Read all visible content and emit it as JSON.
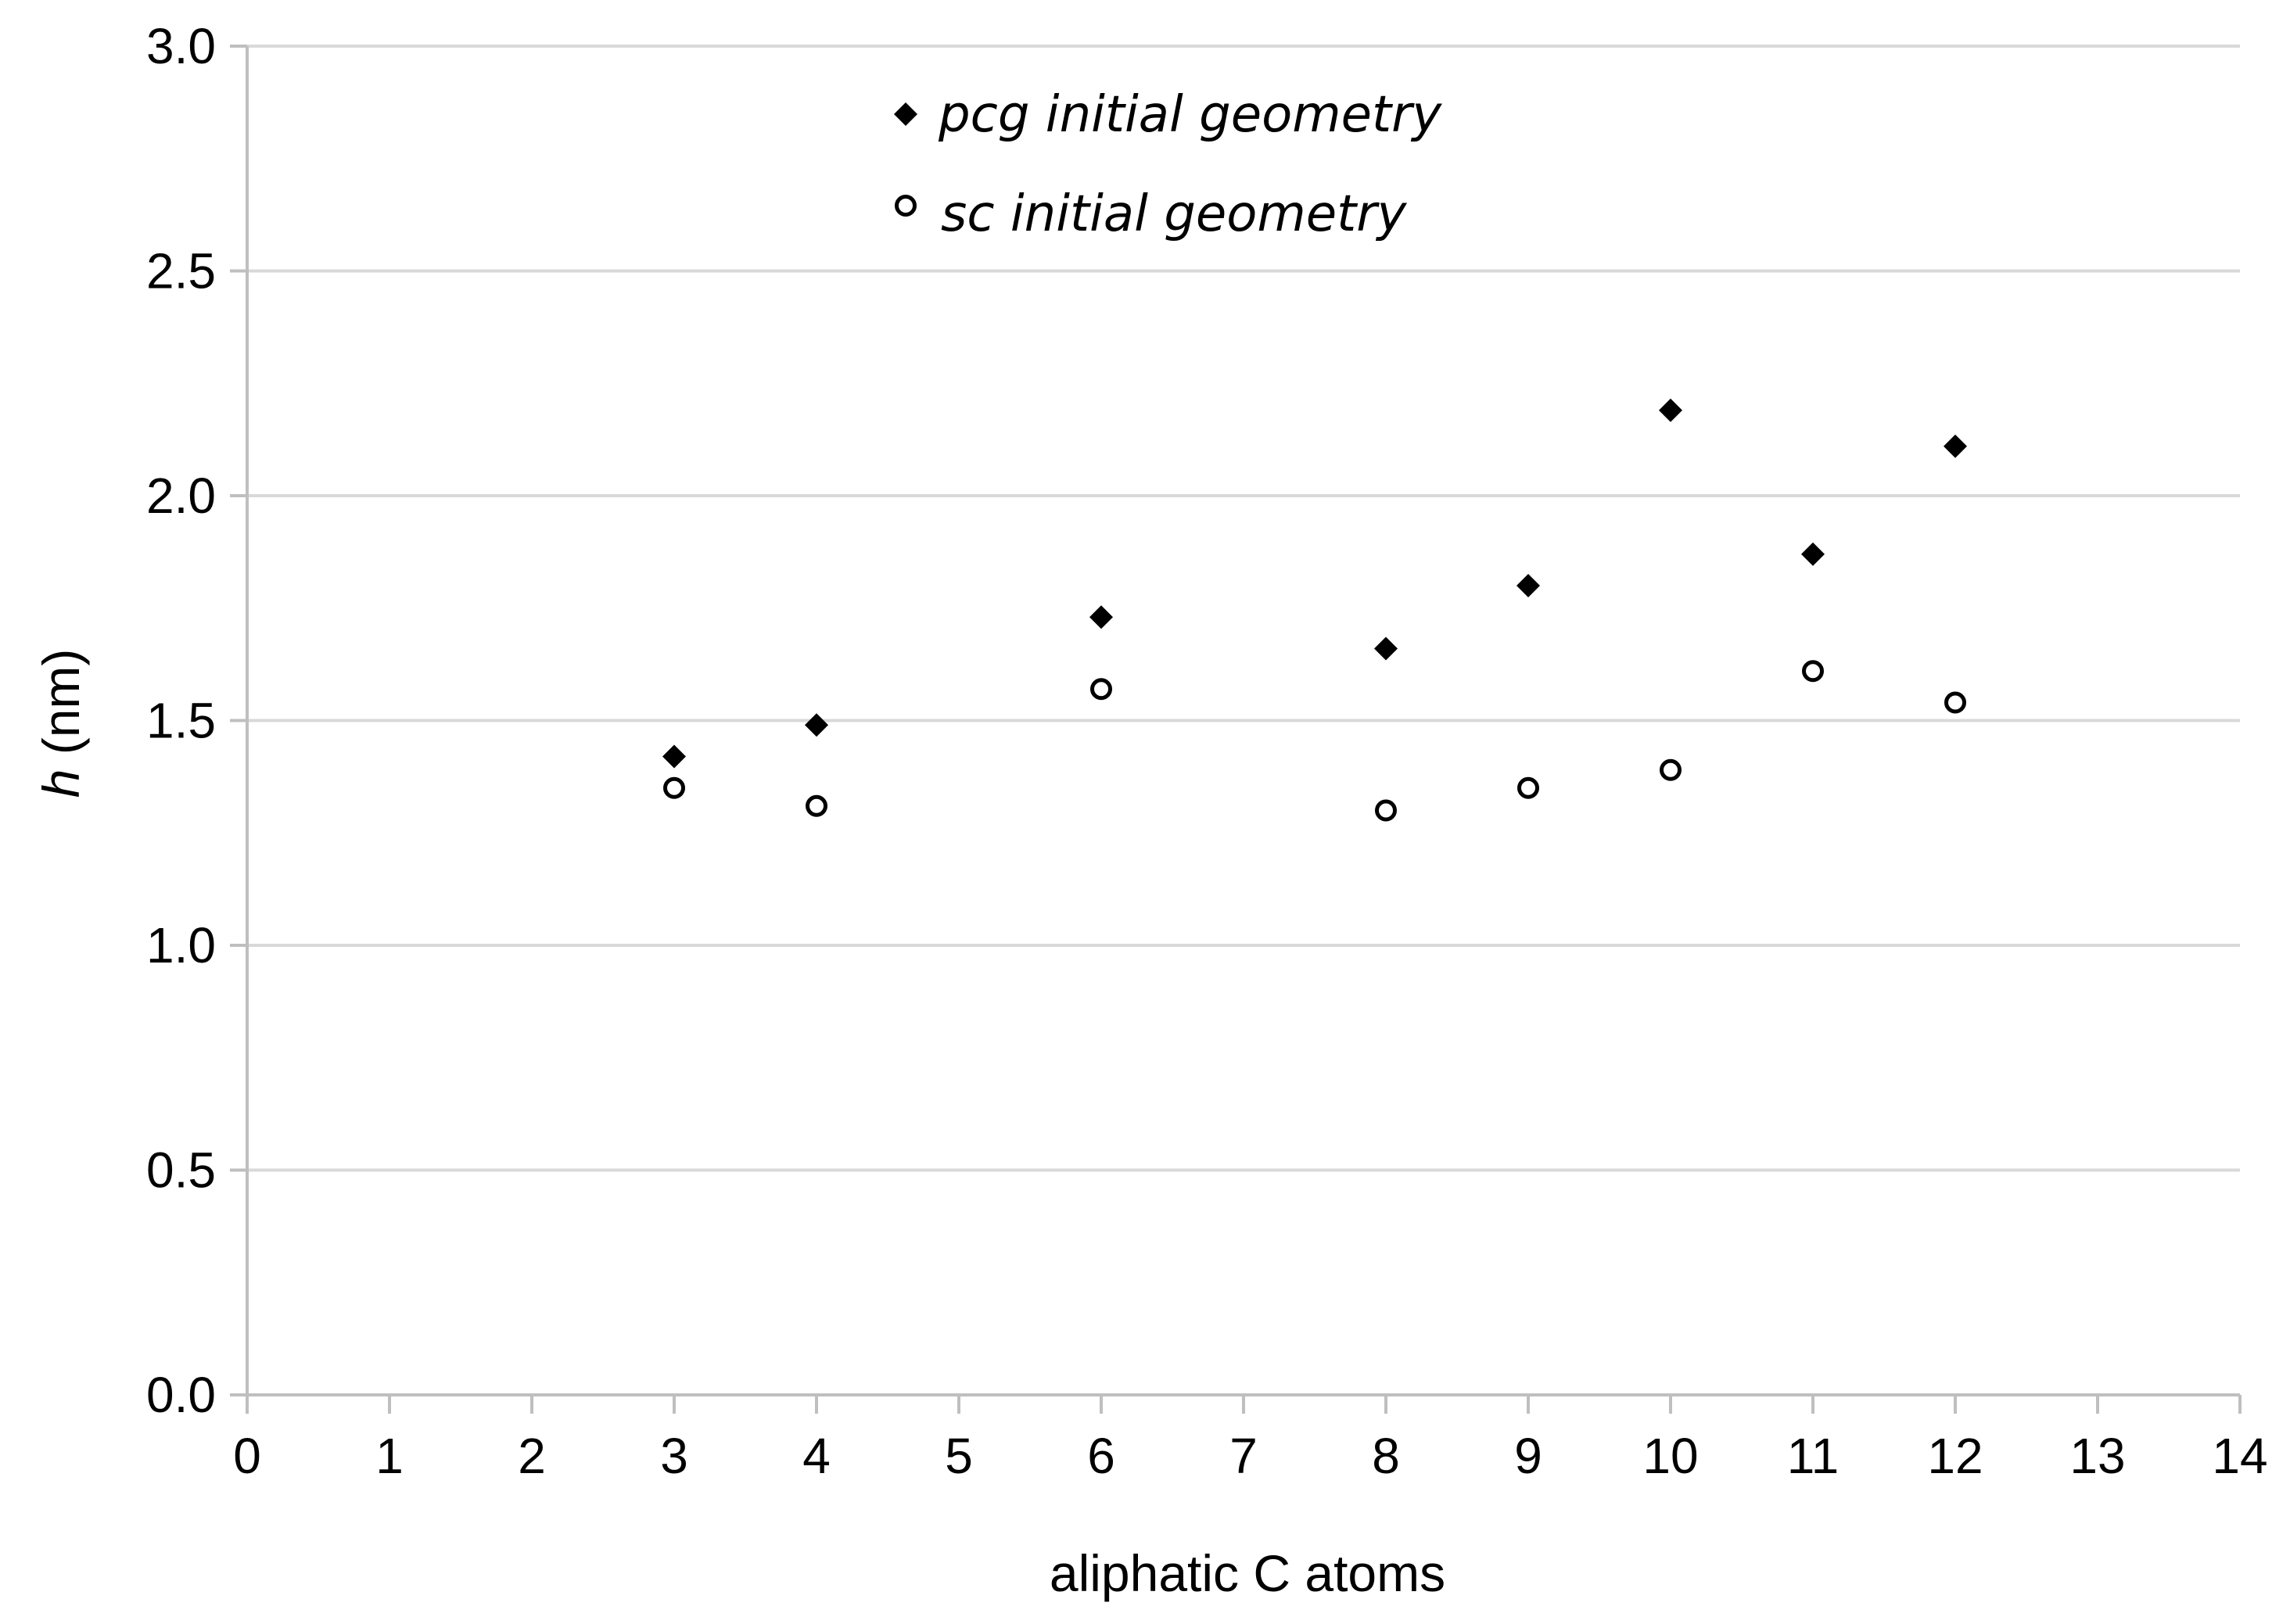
{
  "chart_data": {
    "type": "scatter",
    "title": "",
    "xlabel": "aliphatic C atoms",
    "ylabel_italic": "h",
    "ylabel_rest": " (nm)",
    "xlim": [
      0,
      14
    ],
    "ylim": [
      0.0,
      3.0
    ],
    "x_ticks": [
      0,
      1,
      2,
      3,
      4,
      5,
      6,
      7,
      8,
      9,
      10,
      11,
      12,
      13,
      14
    ],
    "x_tick_labels": [
      "0",
      "1",
      "2",
      "3",
      "4",
      "5",
      "6",
      "7",
      "8",
      "9",
      "10",
      "11",
      "12",
      "13",
      "14"
    ],
    "y_ticks": [
      0.0,
      0.5,
      1.0,
      1.5,
      2.0,
      2.5,
      3.0
    ],
    "y_tick_labels": [
      "0.0",
      "0.5",
      "1.0",
      "1.5",
      "2.0",
      "2.5",
      "3.0"
    ],
    "grid": "horizontal",
    "legend_position": "top-center",
    "series": [
      {
        "name": "pcg initial geometry",
        "marker": "filled-diamond",
        "color": "#000000",
        "x": [
          3,
          4,
          6,
          8,
          9,
          10,
          11,
          12
        ],
        "y": [
          1.42,
          1.49,
          1.73,
          1.66,
          1.8,
          2.19,
          1.87,
          2.11
        ]
      },
      {
        "name": "sc initial geometry",
        "marker": "open-circle",
        "color": "#000000",
        "x": [
          3,
          4,
          6,
          8,
          9,
          10,
          11,
          12
        ],
        "y": [
          1.35,
          1.31,
          1.57,
          1.3,
          1.35,
          1.39,
          1.61,
          1.54
        ]
      }
    ]
  }
}
